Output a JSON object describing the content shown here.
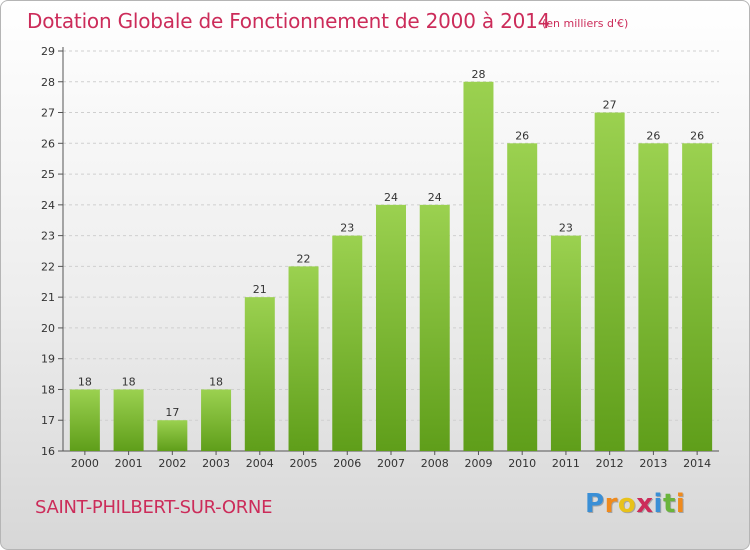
{
  "header": {
    "title": "Dotation Globale de Fonctionnement de 2000 à 2014",
    "subtitle": "(en milliers d'€)"
  },
  "footer": {
    "commune": "SAINT-PHILBERT-SUR-ORNE",
    "logo": {
      "letters": [
        "P",
        "r",
        "o",
        "x",
        "i",
        "t",
        "i"
      ],
      "colors": [
        "#3a8fd6",
        "#f08a1c",
        "#e8c21a",
        "#cc2c5a",
        "#3a8fd6",
        "#6ab43c",
        "#f08a1c"
      ]
    }
  },
  "colors": {
    "accent": "#cc2c5a",
    "bar_light": "#9bd150",
    "bar_dark": "#5f9e1a",
    "grid": "#cfcfcf"
  },
  "chart_data": {
    "type": "bar",
    "title": "Dotation Globale de Fonctionnement de 2000 à 2014",
    "subtitle": "(en milliers d'€)",
    "categories": [
      "2000",
      "2001",
      "2002",
      "2003",
      "2004",
      "2005",
      "2006",
      "2007",
      "2008",
      "2009",
      "2010",
      "2011",
      "2012",
      "2013",
      "2014"
    ],
    "values": [
      18,
      18,
      17,
      18,
      21,
      22,
      23,
      24,
      24,
      28,
      26,
      23,
      27,
      26,
      26
    ],
    "ylim": [
      16,
      29
    ],
    "yticks": [
      16,
      17,
      18,
      19,
      20,
      21,
      22,
      23,
      24,
      25,
      26,
      27,
      28,
      29
    ],
    "grid": true,
    "data_labels": true
  }
}
